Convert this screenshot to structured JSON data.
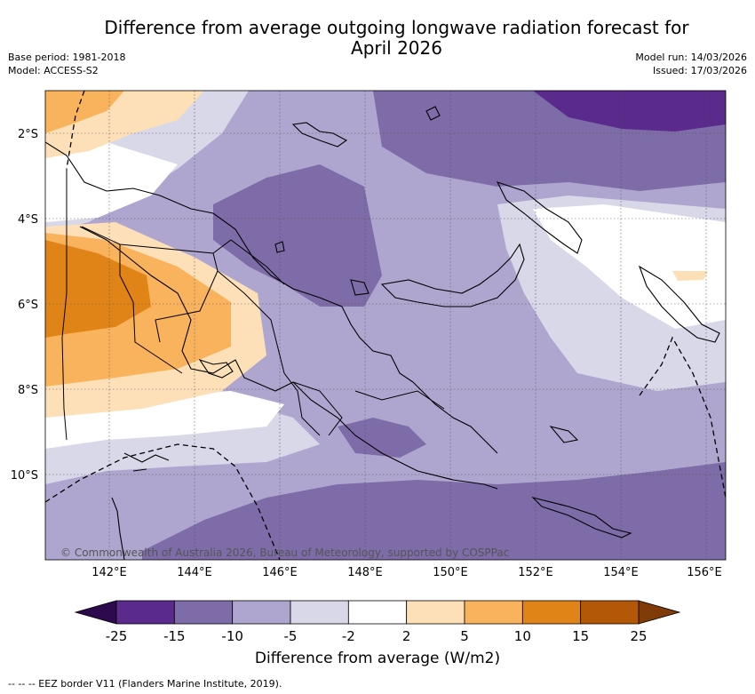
{
  "title_line1": "Difference from average outgoing longwave radiation forecast for",
  "title_line2": "April 2026",
  "meta": {
    "base_period": "Base period: 1981-2018",
    "model": "Model: ACCESS-S2",
    "model_run": "Model run: 14/03/2026",
    "issued": "Issued: 17/03/2026"
  },
  "map": {
    "lat_labels": [
      "2°S",
      "4°S",
      "6°S",
      "8°S",
      "10°S"
    ],
    "lon_labels": [
      "142°E",
      "144°E",
      "146°E",
      "148°E",
      "150°E",
      "152°E",
      "154°E",
      "156°E"
    ],
    "copyright": "© Commonwealth of Australia 2026, Bureau of Meteorology, supported by COSPPac"
  },
  "colorbar": {
    "title": "Difference from average (W/m2)",
    "ticks": [
      "-25",
      "-15",
      "-10",
      "-5",
      "-2",
      "2",
      "5",
      "10",
      "15",
      "25"
    ],
    "colors": [
      "#5a2a8c",
      "#7d6ca8",
      "#afa6d0",
      "#d8d8e8",
      "#ffffff",
      "#fde0b8",
      "#f9b35c",
      "#e08418",
      "#b35806"
    ],
    "low_extend_color": "#2d0a4e",
    "high_extend_color": "#7f3b08"
  },
  "footer": "--  --  -- EEZ border V11 (Flanders Marine Institute, 2019)."
}
